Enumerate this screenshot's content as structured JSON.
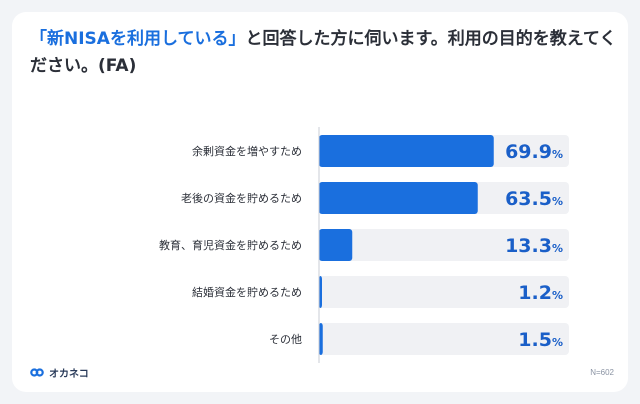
{
  "title": {
    "highlight": "「新NISAを利用している」",
    "rest": "と回答した方に伺います。利用の目的を教えてください。(FA)"
  },
  "brand": {
    "name": "オカネコ"
  },
  "sample_size": "N=602",
  "colors": {
    "bar": "#1a6fde",
    "track": "#f0f1f4",
    "value": "#1a5fc8",
    "axis": "#c9ced6"
  },
  "chart_data": {
    "type": "bar",
    "orientation": "horizontal",
    "categories": [
      "余剰資金を増やすため",
      "老後の資金を貯めるため",
      "教育、育児資金を貯めるため",
      "結婚資金を貯めるため",
      "その他"
    ],
    "values": [
      69.9,
      63.5,
      13.3,
      1.2,
      1.5
    ],
    "value_labels": [
      "69.9",
      "63.5",
      "13.3",
      "1.2",
      "1.5"
    ],
    "unit": "%",
    "xlim": [
      0,
      100
    ],
    "grid": false,
    "legend": "none"
  }
}
